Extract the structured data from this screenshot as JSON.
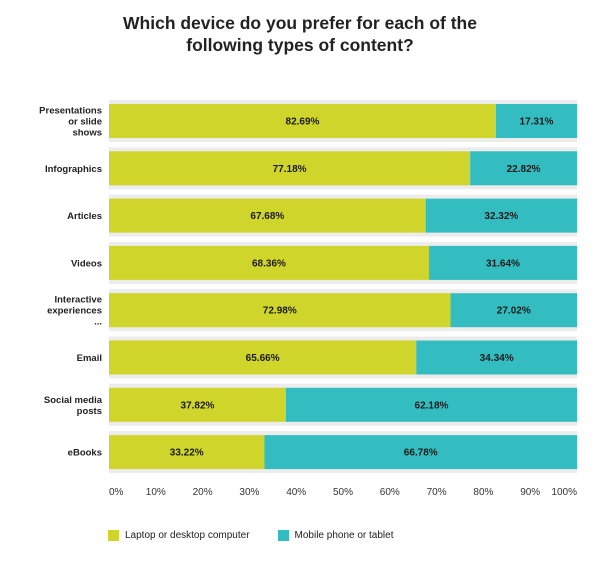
{
  "chart_data": {
    "type": "bar",
    "orientation": "horizontal",
    "stacked": true,
    "title_lines": [
      "Which device do you prefer for each of the",
      "following types of content?"
    ],
    "categories": [
      [
        "Presentations",
        "or slide",
        "shows"
      ],
      [
        "Infographics"
      ],
      [
        "Articles"
      ],
      [
        "Videos"
      ],
      [
        "Interactive",
        "experiences",
        "..."
      ],
      [
        "Email"
      ],
      [
        "Social media",
        "posts"
      ],
      [
        "eBooks"
      ]
    ],
    "series": [
      {
        "name": "Laptop or desktop computer",
        "color": "#cfd52a",
        "values": [
          82.69,
          77.18,
          67.68,
          68.36,
          72.98,
          65.66,
          37.82,
          33.22
        ],
        "labels": [
          "82.69%",
          "77.18%",
          "67.68%",
          "68.36%",
          "72.98%",
          "65.66%",
          "37.82%",
          "33.22%"
        ]
      },
      {
        "name": "Mobile phone or tablet",
        "color": "#34bdc0",
        "values": [
          17.31,
          22.82,
          32.32,
          31.64,
          27.02,
          34.34,
          62.18,
          66.78
        ],
        "labels": [
          "17.31%",
          "22.82%",
          "32.32%",
          "31.64%",
          "27.02%",
          "34.34%",
          "62.18%",
          "66.78%"
        ]
      }
    ],
    "x_ticks": [
      "0%",
      "10%",
      "20%",
      "30%",
      "40%",
      "50%",
      "60%",
      "70%",
      "80%",
      "90%",
      "100%"
    ],
    "xlim": [
      0,
      100
    ],
    "grid": false,
    "legend_position": "bottom-left"
  }
}
